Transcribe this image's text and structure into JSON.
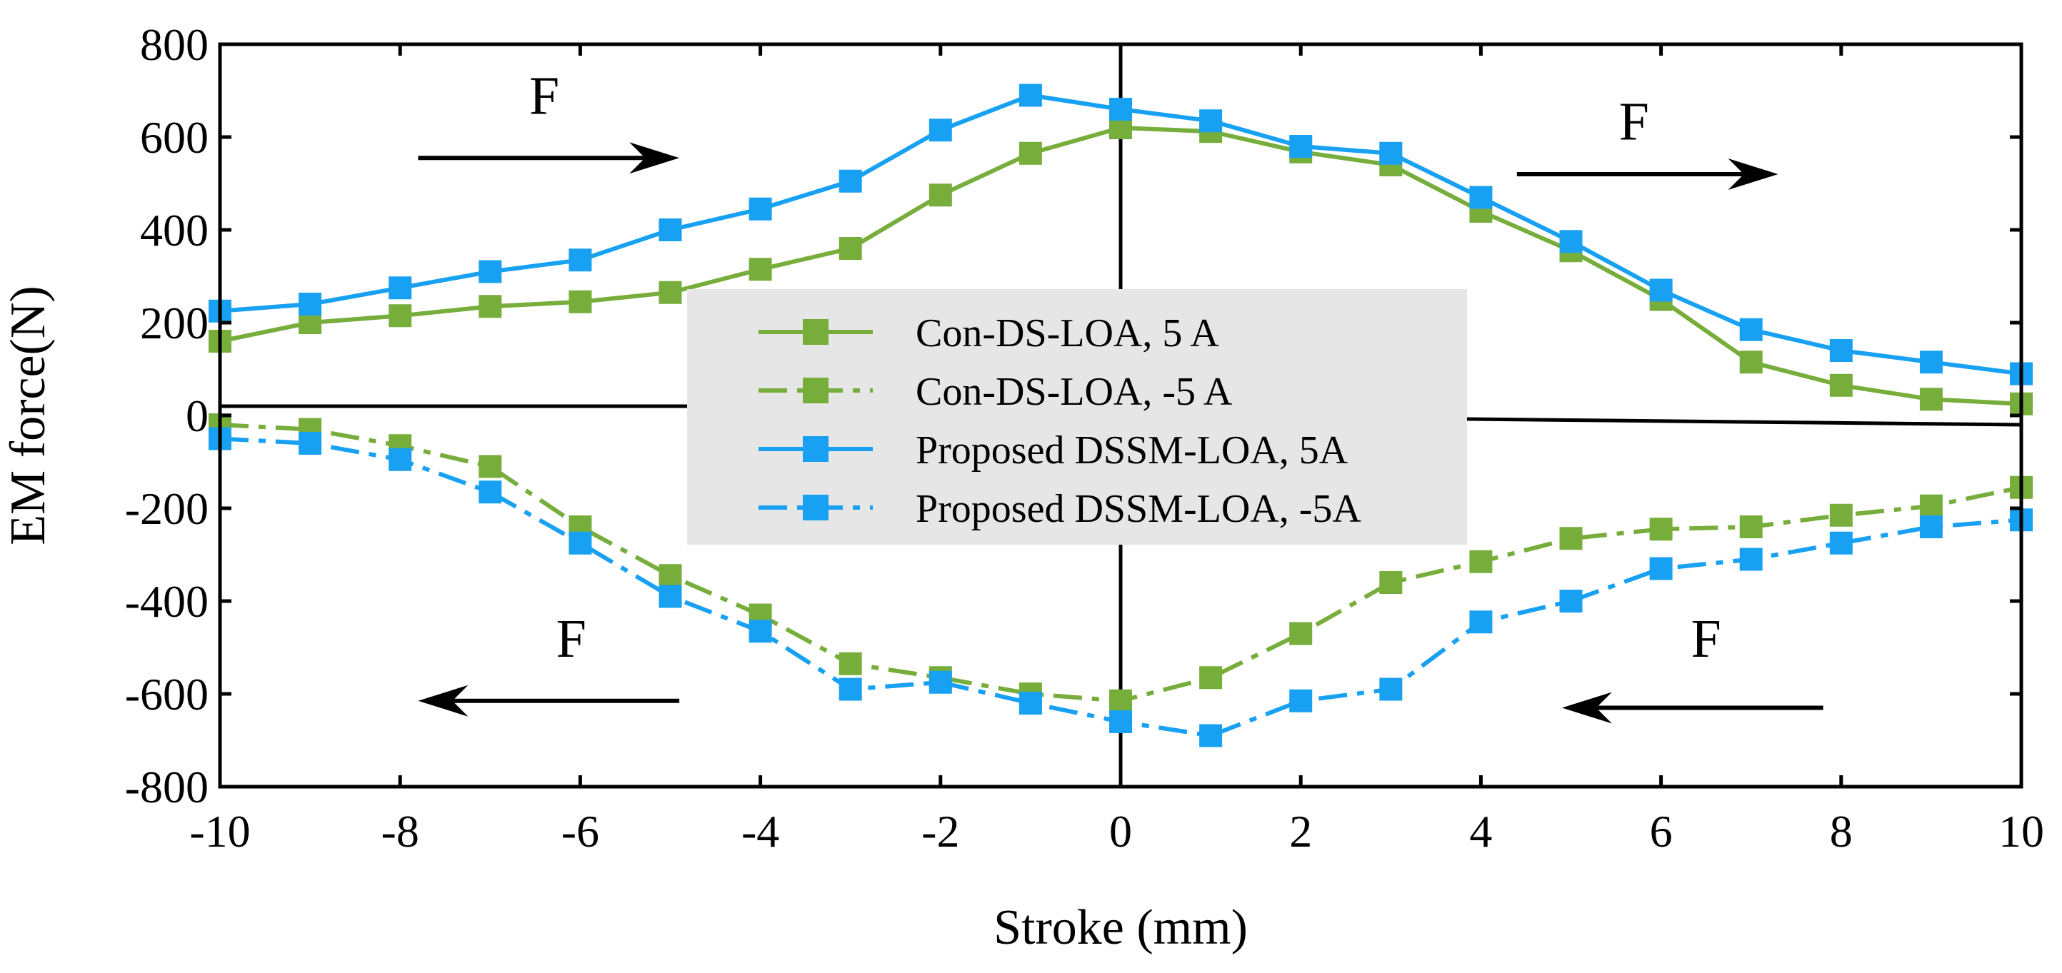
{
  "chart_data": {
    "type": "line",
    "title": "",
    "xlabel": "Stroke (mm)",
    "ylabel": "EM force(N)",
    "xlim": [
      -10,
      10
    ],
    "ylim": [
      -800,
      800
    ],
    "xticks": [
      -10,
      -8,
      -6,
      -4,
      -2,
      0,
      2,
      4,
      6,
      8,
      10
    ],
    "yticks": [
      800,
      600,
      400,
      200,
      0,
      -200,
      -400,
      -600,
      -800
    ],
    "grid": false,
    "legend_position": "center",
    "x": [
      -10,
      -9,
      -8,
      -7,
      -6,
      -5,
      -4,
      -3,
      -2,
      -1,
      0,
      1,
      2,
      3,
      4,
      5,
      6,
      7,
      8,
      9,
      10
    ],
    "series": [
      {
        "name": "Con-DS-LOA, 5 A",
        "color": "#77ad3b",
        "style": "solid",
        "values": [
          160,
          200,
          215,
          235,
          245,
          265,
          315,
          360,
          475,
          565,
          620,
          612,
          568,
          540,
          440,
          355,
          250,
          115,
          65,
          35,
          25
        ]
      },
      {
        "name": "Con-DS-LOA, -5 A",
        "color": "#77ad3b",
        "style": "dashdot",
        "values": [
          -20,
          -30,
          -65,
          -110,
          -240,
          -345,
          -430,
          -535,
          -565,
          -600,
          -615,
          -565,
          -470,
          -360,
          -315,
          -265,
          -245,
          -240,
          -215,
          -195,
          -155
        ]
      },
      {
        "name": "Proposed DSSM-LOA, 5A",
        "color": "#18a1f2",
        "style": "solid",
        "values": [
          225,
          240,
          275,
          310,
          335,
          400,
          445,
          505,
          615,
          690,
          660,
          635,
          580,
          565,
          470,
          375,
          270,
          185,
          140,
          115,
          90
        ]
      },
      {
        "name": "Proposed DSSM-LOA, -5A",
        "color": "#18a1f2",
        "style": "dashdot",
        "values": [
          -50,
          -60,
          -95,
          -165,
          -275,
          -390,
          -465,
          -590,
          -575,
          -620,
          -660,
          -690,
          -615,
          -590,
          -445,
          -400,
          -330,
          -310,
          -275,
          -240,
          -225
        ]
      }
    ],
    "annotations": [
      {
        "text": "F",
        "direction": "right",
        "quadrant": "top-left"
      },
      {
        "text": "F",
        "direction": "right",
        "quadrant": "top-right"
      },
      {
        "text": "F",
        "direction": "left",
        "quadrant": "bottom-left"
      },
      {
        "text": "F",
        "direction": "left",
        "quadrant": "bottom-right"
      }
    ]
  }
}
